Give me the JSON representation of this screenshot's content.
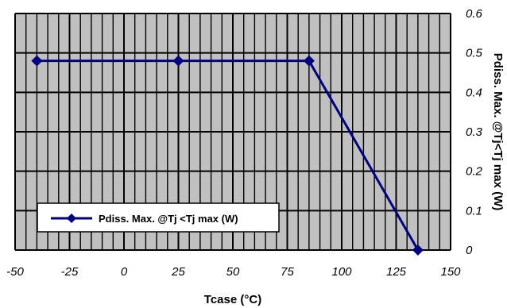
{
  "chart_data": {
    "type": "line",
    "xlabel": "Tcase (°C)",
    "ylabel": "Pdiss. Max. @Tj<Tj max (W)",
    "xlim": [
      -50,
      150
    ],
    "ylim": [
      0,
      0.6
    ],
    "x_ticks": [
      "-50",
      "-25",
      "0",
      "25",
      "50",
      "75",
      "100",
      "125",
      "150"
    ],
    "y_ticks": [
      "0",
      "0.1",
      "0.2",
      "0.3",
      "0.4",
      "0.5",
      "0.6"
    ],
    "y_axis_side": "right",
    "grid": true,
    "legend_position": "bottom-left",
    "series": [
      {
        "name": "Pdiss. Max. @Tj <Tj max (W)",
        "color": "#000080",
        "marker": "diamond",
        "points": [
          [
            -40,
            0.48
          ],
          [
            25,
            0.48
          ],
          [
            85,
            0.48
          ],
          [
            135,
            0
          ]
        ]
      }
    ],
    "plot_background": "#c0c0c0"
  }
}
